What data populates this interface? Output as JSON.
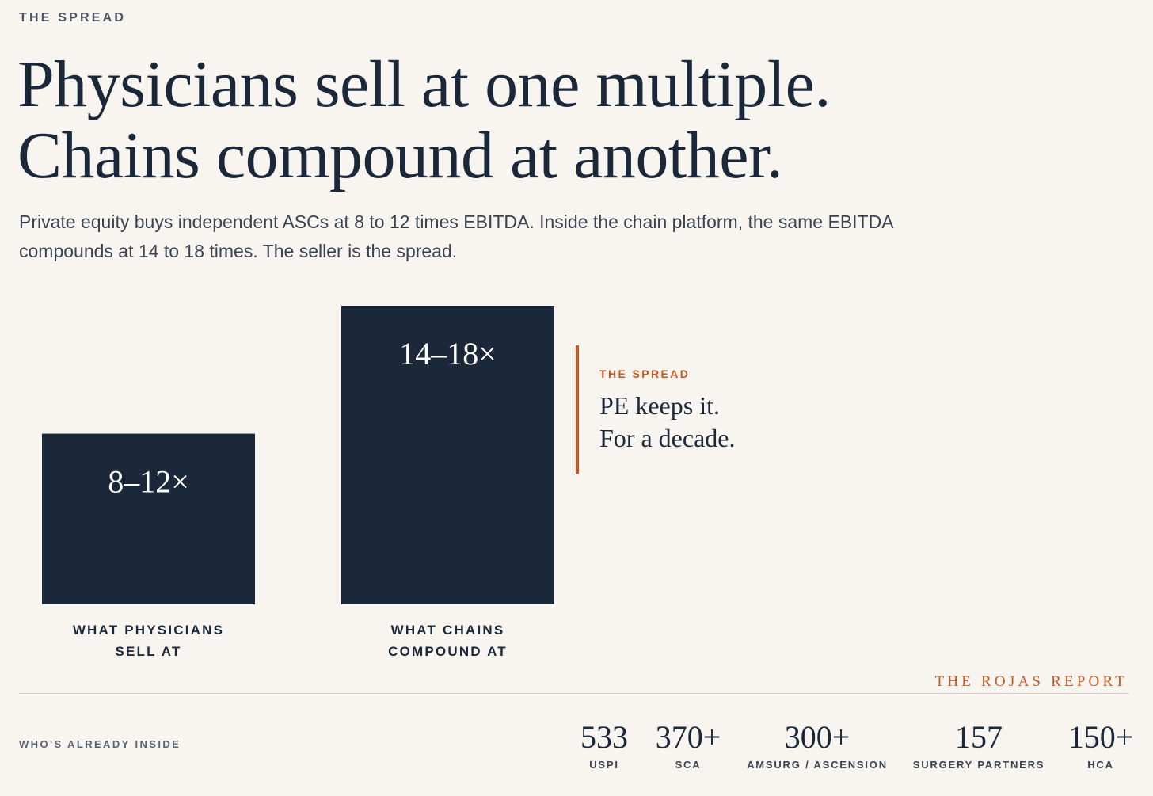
{
  "kicker": "THE SPREAD",
  "headline": {
    "line1": "Physicians sell at one multiple.",
    "line2": "Chains compound at another."
  },
  "dek": "Private equity buys independent ASCs at 8 to 12 times EBITDA. Inside the chain platform, the same EBITDA compounds at 14 to 18 times. The seller is the spread.",
  "chart_data": {
    "type": "bar",
    "categories": [
      [
        "WHAT PHYSICIANS",
        "SELL AT"
      ],
      [
        "WHAT CHAINS",
        "COMPOUND AT"
      ]
    ],
    "value_labels": [
      "8–12×",
      "14–18×"
    ],
    "ranges": [
      [
        8,
        12
      ],
      [
        14,
        18
      ]
    ],
    "values": [
      10,
      17.5
    ],
    "ylim": [
      0,
      17.5
    ],
    "title": "",
    "xlabel": "",
    "ylabel": "",
    "annotation": {
      "kicker": "THE SPREAD",
      "lines": [
        "PE keeps it.",
        "For a decade."
      ]
    }
  },
  "brand": "THE ROJAS REPORT",
  "footer": {
    "label": "WHO'S ALREADY INSIDE",
    "stats": [
      {
        "value": "533",
        "name": "USPI"
      },
      {
        "value": "370+",
        "name": "SCA"
      },
      {
        "value": "300+",
        "name": "AMSURG / ASCENSION"
      },
      {
        "value": "157",
        "name": "SURGERY PARTNERS"
      },
      {
        "value": "150+",
        "name": "HCA"
      }
    ]
  },
  "colors": {
    "navy": "#1b283a",
    "accent": "#c8581e",
    "background": "#f8f5f0"
  }
}
